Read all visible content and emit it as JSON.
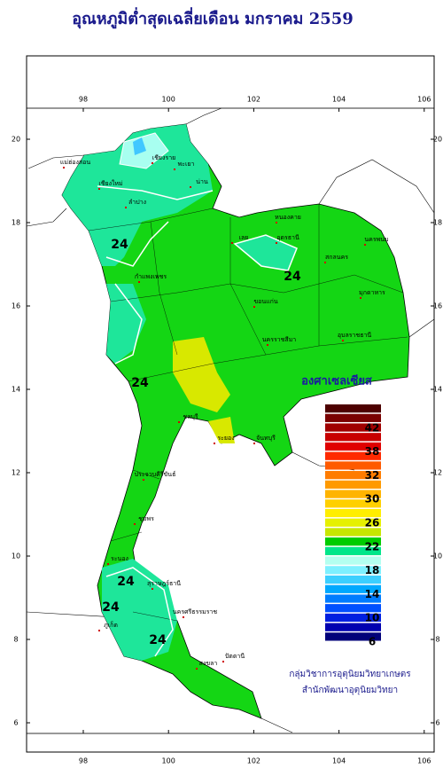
{
  "title": "อุณหภูมิต่ำสุดเฉลี่ยเดือน  มกราคม 2559",
  "lon_ticks": [
    98,
    100,
    102,
    104,
    106
  ],
  "lat_ticks": [
    20,
    18,
    16,
    14,
    12,
    10,
    8,
    6
  ],
  "unit": "องศาเซลเซียส",
  "legend": {
    "labels": [
      42,
      38,
      32,
      30,
      26,
      22,
      18,
      14,
      10,
      6
    ],
    "colors": [
      "#4d0000",
      "#7a0000",
      "#a00000",
      "#c80000",
      "#e00000",
      "#ff2a00",
      "#ff5a00",
      "#ff7c00",
      "#ff9a00",
      "#ffb400",
      "#ffd000",
      "#ffee00",
      "#e6f000",
      "#c8e600",
      "#00cc00",
      "#00e68a",
      "#b4fff0",
      "#7ef0ff",
      "#3ccfff",
      "#00a8ff",
      "#007cff",
      "#0050ff",
      "#0020e0",
      "#0000b0",
      "#00007a"
    ]
  },
  "provinces": [
    "เชียงราย",
    "แม่ฮ่องสอน",
    "เชียงใหม่",
    "ลำปาง",
    "พะเยา",
    "น่าน",
    "หนองคาย",
    "อุดรธานี",
    "สกลนคร",
    "นครพนม",
    "เลย",
    "กำแพงเพชร",
    "ขอนแก่น",
    "มุกดาหาร",
    "นครราชสีมา",
    "อุบลราชธานี",
    "ชลบุรี",
    "ระยอง",
    "จันทบุรี",
    "ประจวบคีรีขันธ์",
    "ชุมพร",
    "ระนอง",
    "สุราษฎร์ธานี",
    "นครศรีธรรมราช",
    "ภูเก็ต",
    "สงขลา",
    "ปัตตานี"
  ],
  "contour_labels": [
    24,
    24,
    24,
    24,
    24,
    24
  ],
  "credits": [
    "กลุ่มวิชาการอุตุนิยมวิทยาเกษตร",
    "สำนักพัฒนาอุตุนิยมวิทยา"
  ]
}
